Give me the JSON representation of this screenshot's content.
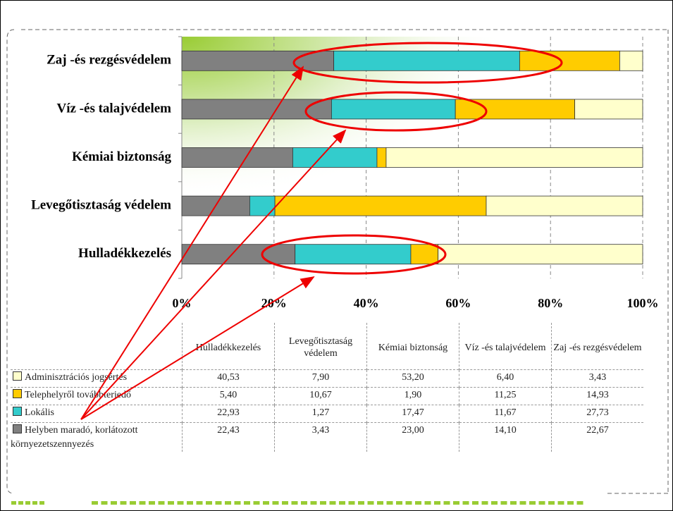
{
  "chart_data": {
    "type": "stacked-bar-100",
    "categories": [
      "Hulladékkezelés",
      "Levegőtisztaság védelem",
      "Kémiai biztonság",
      "Víz -és talajvédelem",
      "Zaj -és rezgésvédelem"
    ],
    "series": [
      {
        "name": "Helyben maradó, korlátozott környezetszennyezés",
        "color": "#808080",
        "values": [
          22.43,
          3.43,
          23.0,
          14.1,
          22.67
        ],
        "value_labels": [
          "22,43",
          "3,43",
          "23,00",
          "14,10",
          "22,67"
        ]
      },
      {
        "name": "Lokális",
        "color": "#33cccc",
        "values": [
          22.93,
          1.27,
          17.47,
          11.67,
          27.73
        ],
        "value_labels": [
          "22,93",
          "1,27",
          "17,47",
          "11,67",
          "27,73"
        ]
      },
      {
        "name": "Telephelyről továbbterjedő",
        "color": "#ffcc00",
        "values": [
          5.4,
          10.67,
          1.9,
          11.25,
          14.93
        ],
        "value_labels": [
          "5,40",
          "10,67",
          "1,90",
          "11,25",
          "14,93"
        ]
      },
      {
        "name": "Adminisztrációs jogsértés",
        "color": "#ffffcc",
        "values": [
          40.53,
          7.9,
          53.2,
          6.4,
          3.43
        ],
        "value_labels": [
          "40,53",
          "7,90",
          "53,20",
          "6,40",
          "3,43"
        ]
      }
    ],
    "xlim": [
      0,
      100
    ],
    "xticks": [
      {
        "value": 0,
        "label": "0%"
      },
      {
        "value": 20,
        "label": "20%"
      },
      {
        "value": 40,
        "label": "40%"
      },
      {
        "value": 60,
        "label": "60%"
      },
      {
        "value": 80,
        "label": "80%"
      },
      {
        "value": 100,
        "label": "100%"
      }
    ],
    "grid": true
  }
}
